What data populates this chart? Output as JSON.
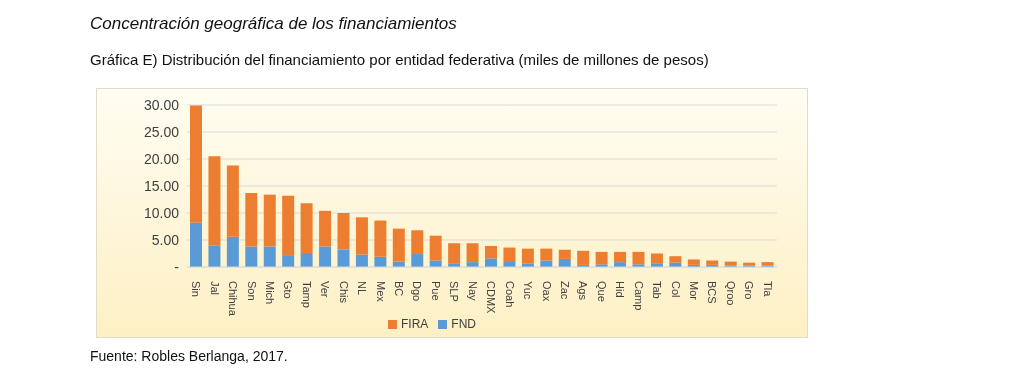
{
  "chart_data": {
    "type": "bar",
    "title": "Concentración geográfica de los financiamientos",
    "subtitle": "Gráfica E) Distribución del financiamiento por entidad federativa (miles de millones de pesos)",
    "categories": [
      "Sin",
      "Jal",
      "Chihua",
      "Son",
      "Mich",
      "Gto",
      "Tamp",
      "Ver",
      "Chis",
      "NL",
      "Mex",
      "BC",
      "Dgo",
      "Pue",
      "SLP",
      "Nay",
      "CDMX",
      "Coah",
      "Yuc",
      "Oax",
      "Zac",
      "Ags",
      "Que",
      "Hid",
      "Camp",
      "Tab",
      "Col",
      "Mor",
      "BCS",
      "Qroo",
      "Gro",
      "Tla"
    ],
    "series": [
      {
        "name": "FND",
        "color": "#5b9bd5",
        "values": [
          8.2,
          4.0,
          5.6,
          3.8,
          3.8,
          2.2,
          2.6,
          3.8,
          3.2,
          2.3,
          1.9,
          1.0,
          2.4,
          1.2,
          0.7,
          0.9,
          1.6,
          1.1,
          0.6,
          1.2,
          1.5,
          0.4,
          0.5,
          0.9,
          0.5,
          0.7,
          0.8,
          0.4,
          0.4,
          0.3,
          0.3,
          0.3
        ]
      },
      {
        "name": "FIRA",
        "color": "#ed7d31",
        "values": [
          21.7,
          16.5,
          13.2,
          9.9,
          9.6,
          11.0,
          9.2,
          6.6,
          6.8,
          6.9,
          6.7,
          6.1,
          4.4,
          4.6,
          3.7,
          3.5,
          2.3,
          2.5,
          2.8,
          2.2,
          1.7,
          2.6,
          2.3,
          1.9,
          2.3,
          1.8,
          1.2,
          1.0,
          0.8,
          0.7,
          0.5,
          0.6
        ]
      }
    ],
    "stacked": true,
    "ylim": [
      0,
      30
    ],
    "yticks": [
      {
        "value": 0,
        "label": "-"
      },
      {
        "value": 5,
        "label": "5.00"
      },
      {
        "value": 10,
        "label": "10.00"
      },
      {
        "value": 15,
        "label": "15.00"
      },
      {
        "value": 20,
        "label": "20.00"
      },
      {
        "value": 25,
        "label": "25.00"
      },
      {
        "value": 30,
        "label": "30.00"
      }
    ],
    "grid": "y",
    "legend": "bottom",
    "annotations": [
      "Fuente: Robles Berlanga, 2017."
    ]
  }
}
